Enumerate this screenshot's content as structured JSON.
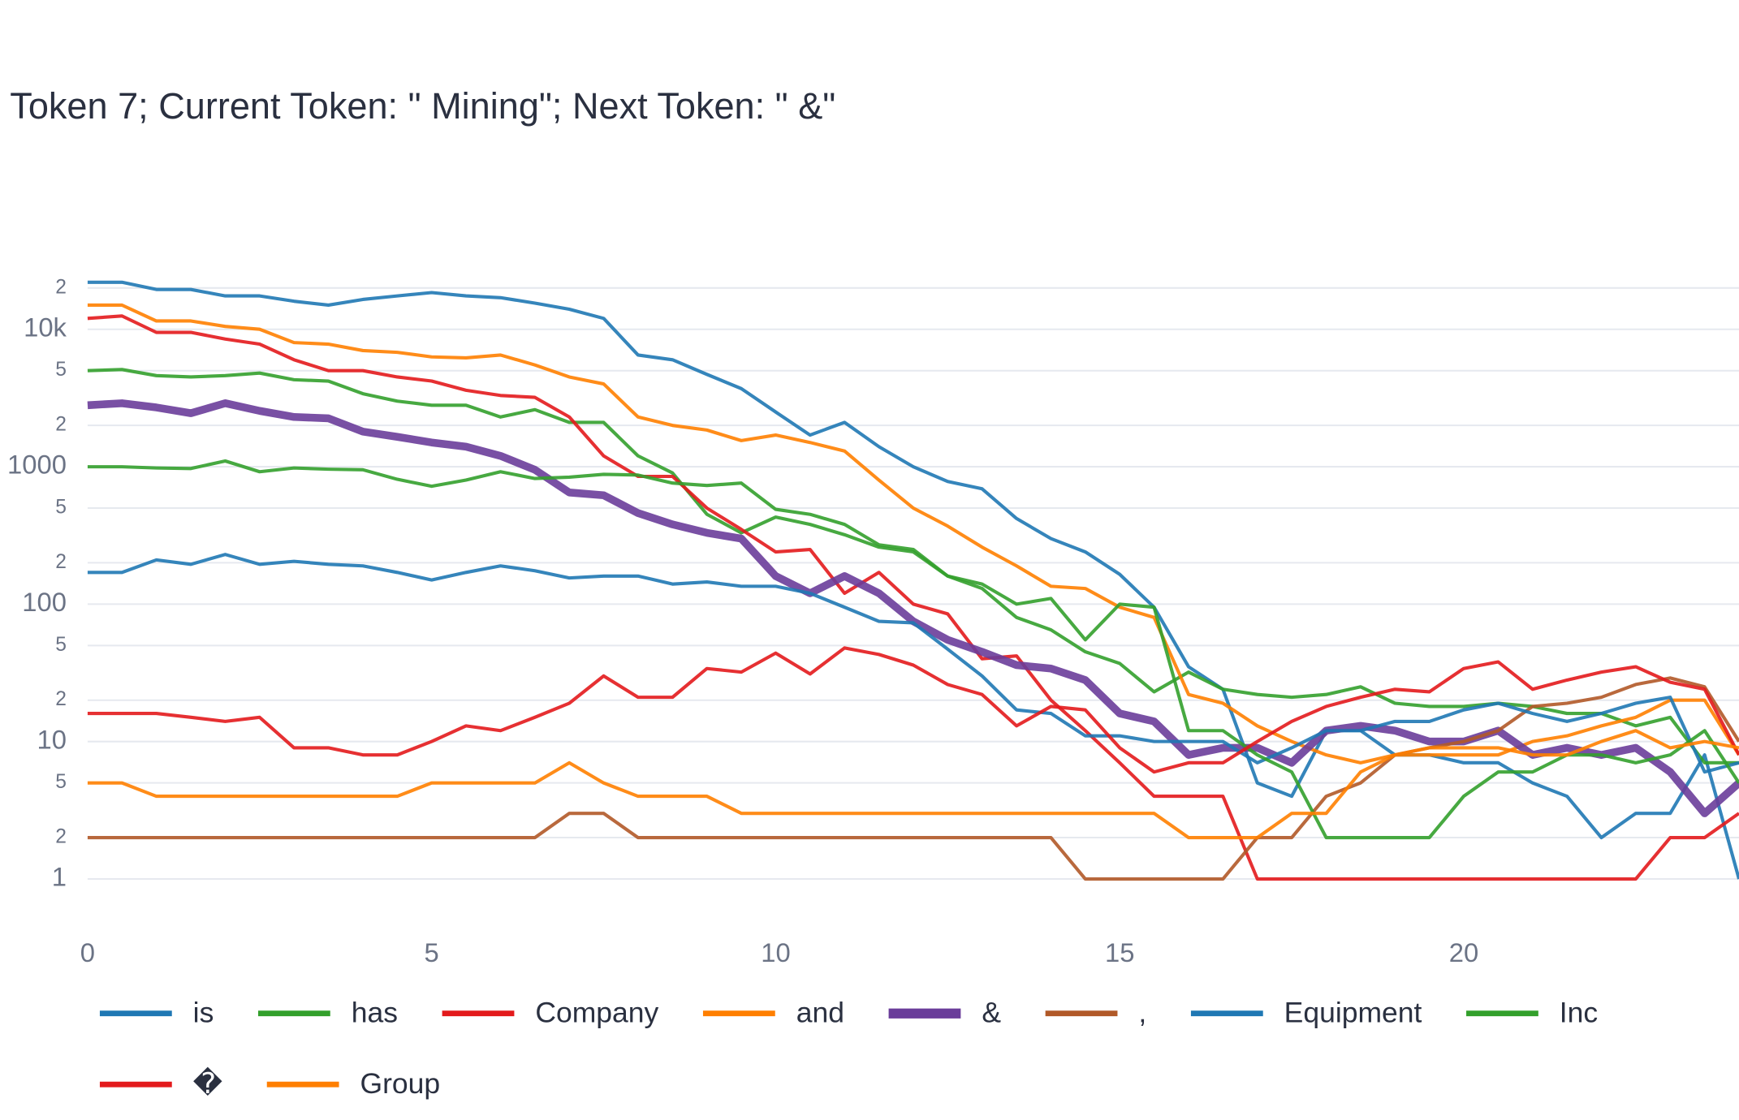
{
  "chart_data": {
    "type": "line",
    "title": "Token 7; Current Token: \" Mining\"; Next Token: \" &\"",
    "log_y": true,
    "grid": true,
    "legend": "bottom",
    "xlim": [
      0,
      24
    ],
    "xticks": [
      0,
      5,
      10,
      15,
      20
    ],
    "ylim": [
      0.4,
      31600
    ],
    "yticks": [
      1,
      2,
      5,
      10,
      {
        "value": 20,
        "label": "2"
      },
      {
        "value": 50,
        "label": "5"
      },
      100,
      {
        "value": 200,
        "label": "2"
      },
      {
        "value": 500,
        "label": "5"
      },
      1000,
      {
        "value": 2000,
        "label": "2"
      },
      {
        "value": 5000,
        "label": "5"
      },
      {
        "value": 10000,
        "label": "10k"
      },
      {
        "value": 20000,
        "label": "2"
      }
    ],
    "x": [
      0,
      0.5,
      1,
      1.5,
      2,
      2.5,
      3,
      3.5,
      4,
      4.5,
      5,
      5.5,
      6,
      6.5,
      7,
      7.5,
      8,
      8.5,
      9,
      9.5,
      10,
      10.5,
      11,
      11.5,
      12,
      12.5,
      13,
      13.5,
      14,
      14.5,
      15,
      15.5,
      16,
      16.5,
      17,
      17.5,
      18,
      18.5,
      19,
      19.5,
      20,
      20.5,
      21,
      21.5,
      22,
      22.5,
      23,
      23.5,
      24
    ],
    "series": [
      {
        "name": "is",
        "color": "#1f78b4",
        "width": 3,
        "values": [
          22000,
          22000,
          19500,
          19500,
          17500,
          17500,
          16000,
          15000,
          16500,
          17500,
          18500,
          17500,
          17000,
          15500,
          14000,
          12000,
          6500,
          6000,
          4700,
          3700,
          2500,
          1700,
          2100,
          1400,
          1000,
          780,
          690,
          420,
          300,
          240,
          165,
          95,
          35,
          24,
          5,
          4,
          12,
          12,
          8,
          8,
          7,
          7,
          5,
          4,
          2,
          3,
          3,
          8,
          1
        ]
      },
      {
        "name": "has",
        "color": "#33a02c",
        "width": 3,
        "values": [
          5000,
          5100,
          4600,
          4500,
          4600,
          4800,
          4300,
          4200,
          3400,
          3000,
          2800,
          2800,
          2300,
          2600,
          2100,
          2100,
          1200,
          900,
          450,
          330,
          430,
          380,
          320,
          260,
          240,
          160,
          130,
          80,
          65,
          45,
          37,
          23,
          32,
          24,
          22,
          21,
          22,
          25,
          19,
          18,
          18,
          19,
          18,
          16,
          16,
          13,
          15,
          7,
          7
        ]
      },
      {
        "name": "Company",
        "color": "#e31a1c",
        "width": 3,
        "values": [
          12000,
          12500,
          9500,
          9500,
          8500,
          7800,
          6000,
          5000,
          5000,
          4500,
          4200,
          3600,
          3300,
          3200,
          2300,
          1200,
          850,
          850,
          500,
          350,
          240,
          250,
          120,
          170,
          100,
          85,
          40,
          42,
          20,
          12,
          7,
          4,
          4,
          4,
          1,
          1,
          1,
          1,
          1,
          1,
          1,
          1,
          1,
          1,
          1,
          1,
          2,
          2,
          3
        ]
      },
      {
        "name": "and",
        "color": "#ff7f00",
        "width": 3,
        "values": [
          15000,
          15000,
          11500,
          11500,
          10500,
          10000,
          8000,
          7800,
          7000,
          6800,
          6300,
          6200,
          6500,
          5500,
          4500,
          4000,
          2300,
          2000,
          1850,
          1550,
          1700,
          1500,
          1300,
          800,
          500,
          370,
          260,
          190,
          135,
          130,
          95,
          80,
          22,
          19,
          13,
          10,
          8,
          7,
          8,
          8,
          8,
          8,
          10,
          11,
          13,
          15,
          20,
          20,
          8
        ]
      },
      {
        "name": "&",
        "color": "#6a3d9a",
        "width": 7,
        "values": [
          2800,
          2900,
          2700,
          2450,
          2900,
          2550,
          2300,
          2250,
          1800,
          1650,
          1500,
          1400,
          1200,
          950,
          650,
          620,
          460,
          380,
          330,
          300,
          160,
          120,
          160,
          120,
          75,
          55,
          45,
          36,
          34,
          28,
          16,
          14,
          8,
          9,
          9,
          7,
          12,
          13,
          12,
          10,
          10,
          12,
          8,
          9,
          8,
          9,
          6,
          3,
          5
        ]
      },
      {
        "name": ",",
        "color": "#b15928",
        "width": 3,
        "values": [
          2,
          2,
          2,
          2,
          2,
          2,
          2,
          2,
          2,
          2,
          2,
          2,
          2,
          2,
          3,
          3,
          2,
          2,
          2,
          2,
          2,
          2,
          2,
          2,
          2,
          2,
          2,
          2,
          2,
          1,
          1,
          1,
          1,
          1,
          2,
          2,
          4,
          5,
          8,
          9,
          10,
          12,
          18,
          19,
          21,
          26,
          29,
          25,
          10
        ]
      },
      {
        "name": "Equipment",
        "color": "#1f78b4",
        "width": 3,
        "values": [
          170,
          170,
          210,
          195,
          230,
          195,
          205,
          195,
          190,
          170,
          150,
          170,
          190,
          175,
          155,
          160,
          160,
          140,
          145,
          135,
          135,
          120,
          95,
          75,
          73,
          47,
          30,
          17,
          16,
          11,
          11,
          10,
          10,
          10,
          7,
          9,
          12,
          12,
          14,
          14,
          17,
          19,
          16,
          14,
          16,
          19,
          21,
          6,
          7
        ]
      },
      {
        "name": "Inc",
        "color": "#33a02c",
        "width": 3,
        "values": [
          1000,
          1000,
          980,
          970,
          1100,
          920,
          980,
          960,
          950,
          810,
          720,
          800,
          920,
          820,
          840,
          880,
          870,
          760,
          730,
          760,
          490,
          450,
          380,
          270,
          250,
          160,
          140,
          100,
          110,
          55,
          100,
          95,
          12,
          12,
          8,
          6,
          2,
          2,
          2,
          2,
          4,
          6,
          6,
          8,
          8,
          7,
          8,
          12,
          5
        ]
      },
      {
        "name": "�",
        "color": "#e31a1c",
        "width": 3,
        "values": [
          16,
          16,
          16,
          15,
          14,
          15,
          9,
          9,
          8,
          8,
          10,
          13,
          12,
          15,
          19,
          30,
          21,
          21,
          34,
          32,
          44,
          31,
          48,
          43,
          36,
          26,
          22,
          13,
          18,
          17,
          9,
          6,
          7,
          7,
          10,
          14,
          18,
          21,
          24,
          23,
          34,
          38,
          24,
          28,
          32,
          35,
          27,
          24,
          8
        ]
      },
      {
        "name": "Group",
        "color": "#ff7f00",
        "width": 3,
        "values": [
          5,
          5,
          4,
          4,
          4,
          4,
          4,
          4,
          4,
          4,
          5,
          5,
          5,
          5,
          7,
          5,
          4,
          4,
          4,
          3,
          3,
          3,
          3,
          3,
          3,
          3,
          3,
          3,
          3,
          3,
          3,
          3,
          2,
          2,
          2,
          3,
          3,
          6,
          8,
          9,
          9,
          9,
          8,
          8,
          10,
          12,
          9,
          10,
          9
        ]
      }
    ]
  }
}
